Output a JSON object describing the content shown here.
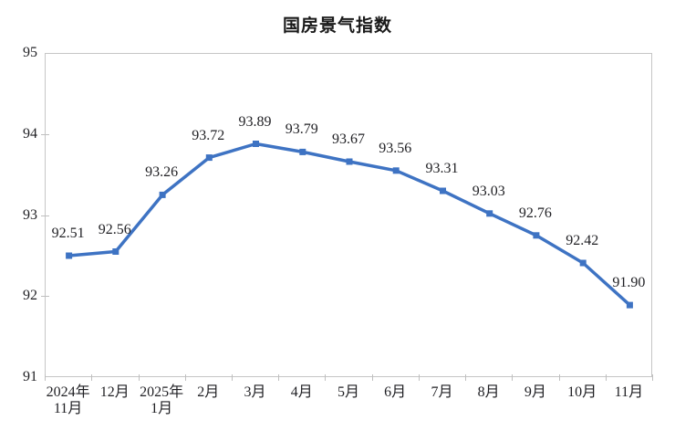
{
  "page": {
    "background": "#ffffff"
  },
  "chart_data": {
    "type": "line",
    "title": "国房景气指数",
    "categories": [
      "2024年\n11月",
      "12月",
      "2025年\n1月",
      "2月",
      "3月",
      "4月",
      "5月",
      "6月",
      "7月",
      "8月",
      "9月",
      "10月",
      "11月"
    ],
    "series": [
      {
        "name": "国房景气指数",
        "values": [
          92.51,
          92.56,
          93.26,
          93.72,
          93.89,
          93.79,
          93.67,
          93.56,
          93.31,
          93.03,
          92.76,
          92.42,
          91.9
        ]
      }
    ],
    "data_labels": [
      "92.51",
      "92.56",
      "93.26",
      "93.72",
      "93.89",
      "93.79",
      "93.67",
      "93.56",
      "93.31",
      "93.03",
      "92.76",
      "92.42",
      "91.90"
    ],
    "xlabel": "",
    "ylabel": "",
    "ylim": [
      91,
      95
    ],
    "yticks": [
      95,
      94,
      93,
      92,
      91
    ],
    "grid": false,
    "legend_position": "none",
    "marker": "square",
    "colors": {
      "line": "#3e73c3",
      "marker": "#3e73c3",
      "axis_line": "#c6c6c6",
      "tick": "#bfbfbf",
      "text": "#1f1f23",
      "title_text": "#1a1a1a",
      "background": "#ffffff"
    }
  }
}
